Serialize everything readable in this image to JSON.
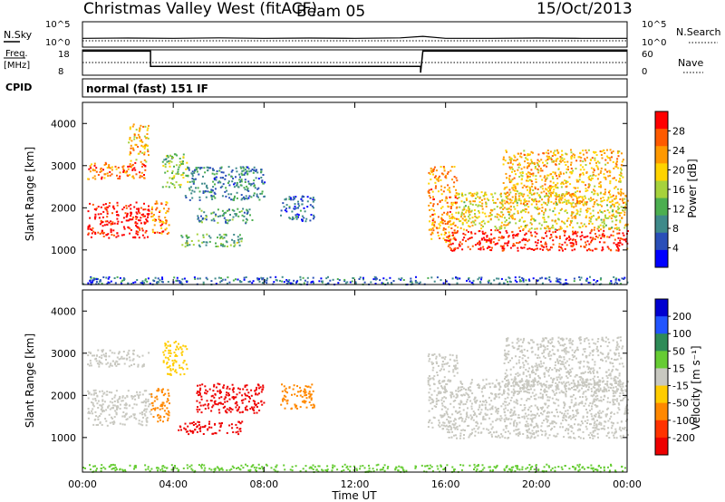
{
  "header": {
    "title": "Christmas Valley West (fitACF)",
    "beam": "Beam 05",
    "date": "15/Oct/2013"
  },
  "panels": {
    "nsky": {
      "left_label": "N.Sky",
      "right_label": "N.Search",
      "ticks_left": [
        "10^5",
        "10^0"
      ],
      "ticks_right": [
        "10^5",
        "10^0"
      ]
    },
    "freq": {
      "left_label_1": "Freq.",
      "left_label_2": "[MHz]",
      "right_label": "Nave",
      "ticks_left": [
        "18",
        "8"
      ],
      "ticks_right": [
        "60",
        "0"
      ]
    },
    "cpid": {
      "label": "CPID",
      "text": "normal (fast) 151 IF"
    },
    "power": {
      "ylabel": "Slant Range [km]",
      "yticks": [
        "4000",
        "3000",
        "2000",
        "1000"
      ],
      "colorbar_label": "Power [dB]",
      "colorbar_ticks": [
        "28",
        "24",
        "20",
        "16",
        "12",
        "8",
        "4"
      ],
      "colors": [
        "#0000ff",
        "#2a4fb8",
        "#3f8a8a",
        "#4caf50",
        "#a6d23c",
        "#ffd400",
        "#ff9900",
        "#ff5a00",
        "#ff0000"
      ]
    },
    "velocity": {
      "ylabel": "Slant Range [km]",
      "yticks": [
        "4000",
        "3000",
        "2000",
        "1000"
      ],
      "colorbar_label": "Velocity [m s⁻¹]",
      "colorbar_ticks": [
        "200",
        "100",
        "50",
        "15",
        "-15",
        "-50",
        "-100",
        "-200"
      ],
      "colors": [
        "#0000d0",
        "#2255ff",
        "#2e8b57",
        "#66cc33",
        "#c8c8c0",
        "#ffcc00",
        "#ff8800",
        "#ff3300",
        "#ee0000"
      ]
    },
    "xaxis": {
      "label": "Time UT",
      "ticks": [
        "00:00",
        "04:00",
        "08:00",
        "12:00",
        "16:00",
        "20:00",
        "00:00"
      ]
    }
  },
  "chart_data": [
    {
      "type": "line",
      "name": "nsky",
      "x_hours": [
        0,
        2,
        4,
        6,
        8,
        10,
        12,
        14,
        15,
        16,
        18,
        20,
        22,
        24
      ],
      "y_log10": [
        0.3,
        0.35,
        0.3,
        0.4,
        0.3,
        0.35,
        0.3,
        0.4,
        0.7,
        0.3,
        0.3,
        0.35,
        0.3,
        0.3
      ],
      "ylim": [
        0,
        5
      ]
    },
    {
      "type": "line",
      "name": "frequency",
      "x_hours": [
        0,
        3.0,
        3.0,
        14.9,
        14.9,
        15.0,
        15.0,
        24
      ],
      "y_mhz": [
        17.5,
        17.5,
        11.5,
        11.5,
        9,
        17.5,
        17.5,
        17.5
      ],
      "ylim": [
        8,
        18
      ]
    },
    {
      "type": "heatmap",
      "name": "power",
      "ylim_km": [
        180,
        4500
      ],
      "xlim_hours": [
        0,
        24
      ],
      "colorbar_range_db": [
        0,
        30
      ],
      "regions": [
        {
          "t0": 0.2,
          "t1": 2.9,
          "r0": 1300,
          "r1": 2150,
          "level": 29
        },
        {
          "t0": 0.2,
          "t1": 2.9,
          "r0": 2700,
          "r1": 3100,
          "level": 24
        },
        {
          "t0": 2.0,
          "t1": 2.9,
          "r0": 3100,
          "r1": 4000,
          "level": 20
        },
        {
          "t0": 3.0,
          "t1": 3.8,
          "r0": 1400,
          "r1": 2200,
          "level": 23
        },
        {
          "t0": 3.5,
          "t1": 4.6,
          "r0": 2500,
          "r1": 3300,
          "level": 14
        },
        {
          "t0": 4.2,
          "t1": 7.0,
          "r0": 1100,
          "r1": 1400,
          "level": 12
        },
        {
          "t0": 5.0,
          "t1": 7.5,
          "r0": 1650,
          "r1": 2000,
          "level": 10
        },
        {
          "t0": 4.5,
          "t1": 8.0,
          "r0": 2200,
          "r1": 3000,
          "level": 8
        },
        {
          "t0": 8.7,
          "t1": 10.2,
          "r0": 1700,
          "r1": 2300,
          "level": 6
        },
        {
          "t0": 15.2,
          "t1": 16.5,
          "r0": 1200,
          "r1": 3000,
          "level": 22
        },
        {
          "t0": 16.0,
          "t1": 24.0,
          "r0": 1000,
          "r1": 1500,
          "level": 28
        },
        {
          "t0": 16.5,
          "t1": 24.0,
          "r0": 1500,
          "r1": 2400,
          "level": 18
        },
        {
          "t0": 18.5,
          "t1": 23.8,
          "r0": 2100,
          "r1": 3400,
          "level": 20
        },
        {
          "t0": 0.0,
          "t1": 24.0,
          "r0": 200,
          "r1": 380,
          "level": 6
        }
      ]
    },
    {
      "type": "heatmap",
      "name": "velocity",
      "ylim_km": [
        180,
        4500
      ],
      "xlim_hours": [
        0,
        24
      ],
      "colorbar_range_mps": [
        -250,
        250
      ],
      "regions": [
        {
          "t0": 0.2,
          "t1": 3.0,
          "r0": 1300,
          "r1": 2150,
          "level": 0
        },
        {
          "t0": 0.2,
          "t1": 2.9,
          "r0": 2700,
          "r1": 3100,
          "level": 0
        },
        {
          "t0": 3.0,
          "t1": 3.8,
          "r0": 1400,
          "r1": 2200,
          "level": -60
        },
        {
          "t0": 3.5,
          "t1": 4.6,
          "r0": 2500,
          "r1": 3300,
          "level": -40
        },
        {
          "t0": 4.2,
          "t1": 7.0,
          "r0": 1100,
          "r1": 1400,
          "level": -220
        },
        {
          "t0": 5.0,
          "t1": 8.0,
          "r0": 1600,
          "r1": 2300,
          "level": -220
        },
        {
          "t0": 8.7,
          "t1": 10.2,
          "r0": 1700,
          "r1": 2300,
          "level": -90
        },
        {
          "t0": 15.2,
          "t1": 16.5,
          "r0": 1200,
          "r1": 3000,
          "level": 0
        },
        {
          "t0": 16.0,
          "t1": 24.0,
          "r0": 1000,
          "r1": 1500,
          "level": 0
        },
        {
          "t0": 16.5,
          "t1": 24.0,
          "r0": 1500,
          "r1": 2400,
          "level": 0
        },
        {
          "t0": 18.5,
          "t1": 23.8,
          "r0": 2100,
          "r1": 3400,
          "level": 0
        },
        {
          "t0": 0.0,
          "t1": 24.0,
          "r0": 200,
          "r1": 380,
          "level": 30
        }
      ]
    }
  ]
}
